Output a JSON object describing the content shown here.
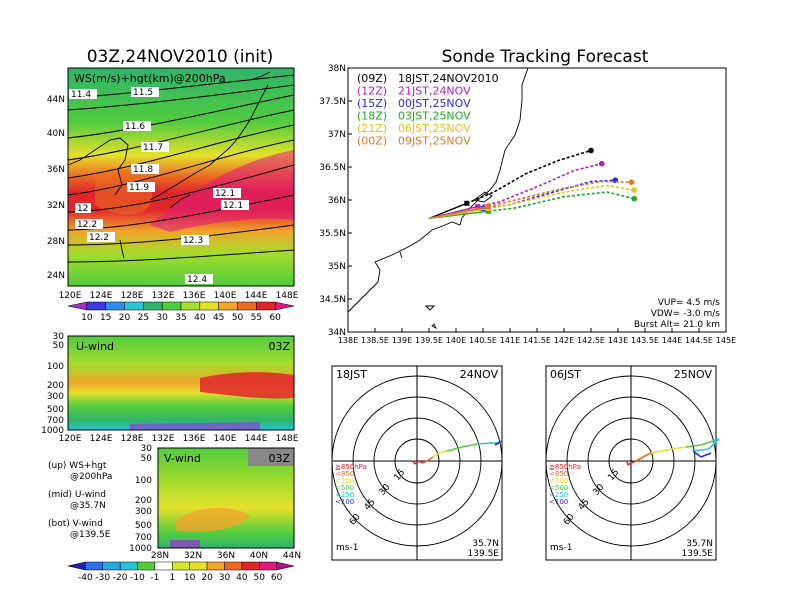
{
  "left_title": "03Z,24NOV2010 (init)",
  "right_title": "Sonde Tracking Forecast",
  "map_panel": {
    "label": "WS(m/s)+hgt(km)@200hPa",
    "lon_ticks": [
      "120E",
      "124E",
      "128E",
      "132E",
      "136E",
      "140E",
      "144E",
      "148E"
    ],
    "lat_ticks": [
      "44N",
      "40N",
      "36N",
      "32N",
      "28N",
      "24N"
    ],
    "contour_labels": [
      "11.4",
      "11.5",
      "11.6",
      "11.7",
      "11.8",
      "11.9",
      "12",
      "12.1",
      "12.2",
      "12.1",
      "12.2",
      "12.3",
      "12.4"
    ],
    "colorbar_ticks": [
      "10",
      "15",
      "20",
      "25",
      "30",
      "35",
      "40",
      "45",
      "50",
      "55",
      "60"
    ],
    "colors": [
      "#9b30d0",
      "#3a3adf",
      "#2f8fe8",
      "#29c3d6",
      "#2fb36a",
      "#52cc3e",
      "#a6dc2c",
      "#e6e02c",
      "#f0a52b",
      "#ea6a23",
      "#e0262c",
      "#e01880"
    ]
  },
  "u_panel": {
    "label": "U-wind",
    "time": "03Z",
    "p_ticks": [
      "30",
      "50",
      "100",
      "200",
      "300",
      "500",
      "700",
      "1000"
    ],
    "lon_ticks": [
      "120E",
      "124E",
      "128E",
      "132E",
      "136E",
      "140E",
      "144E",
      "148E"
    ]
  },
  "v_panel": {
    "label": "V-wind",
    "time": "03Z",
    "p_ticks": [
      "30",
      "50",
      "100",
      "200",
      "300",
      "500",
      "700",
      "1000"
    ],
    "lat_ticks": [
      "28N",
      "32N",
      "36N",
      "40N",
      "44N"
    ]
  },
  "legend_notes": [
    {
      "a": "(up) WS+hgt",
      "b": "@200hPa"
    },
    {
      "a": "(mid) U-wind",
      "b": "@35.7N"
    },
    {
      "a": "(bot) V-wind",
      "b": "@139.5E"
    }
  ],
  "bottom_colorbar": [
    "-40",
    "-30",
    "-20",
    "-10",
    "-1",
    "1",
    "10",
    "20",
    "30",
    "40",
    "50",
    "60"
  ],
  "track_map": {
    "lat_ticks": [
      "38N",
      "37.5N",
      "37N",
      "36.5N",
      "36N",
      "35.5N",
      "35N",
      "34.5N",
      "34N"
    ],
    "lon_ticks": [
      "138E",
      "138.5E",
      "139E",
      "139.5E",
      "140E",
      "140.5E",
      "141E",
      "141.5E",
      "142E",
      "142.5E",
      "143E",
      "143.5E",
      "144E",
      "144.5E",
      "145E"
    ],
    "legend": [
      {
        "z": "(09Z)",
        "t": "18JST,24NOV2010",
        "color": "#000000"
      },
      {
        "z": "(12Z)",
        "t": "21JST,24NOV",
        "color": "#b020c8"
      },
      {
        "z": "(15Z)",
        "t": "00JST,25NOV",
        "color": "#2a2ae0"
      },
      {
        "z": "(18Z)",
        "t": "03JST,25NOV",
        "color": "#1faa1f"
      },
      {
        "z": "(21Z)",
        "t": "06JST,25NOV",
        "color": "#e8c020"
      },
      {
        "z": "(00Z)",
        "t": "09JST,25NOV",
        "color": "#e07a20"
      }
    ],
    "params": [
      "VUP= 4.5 m/s",
      "VDW= -3.0 m/s",
      "Burst Alt= 21.0 km"
    ]
  },
  "hodo_left": {
    "time": "18JST",
    "date": "24NOV",
    "loc1": "35.7N",
    "loc2": "139.5E",
    "unit": "ms-1"
  },
  "hodo_right": {
    "time": "06JST",
    "date": "25NOV",
    "loc1": "35.7N",
    "loc2": "139.5E",
    "unit": "ms-1"
  },
  "hodo_rings": [
    "15",
    "30",
    "45",
    "60"
  ],
  "hodo_pressure_legend": [
    "≧850hPa",
    "<850",
    "<700",
    "<500",
    "<250",
    "<100"
  ],
  "chart_data": {
    "type": "line",
    "title": "Sonde Tracking Forecast",
    "xlabel": "",
    "ylabel": "",
    "xlim": [
      138,
      145
    ],
    "ylim": [
      34,
      38
    ],
    "series": [
      {
        "name": "(09Z) 18JST,24NOV2010",
        "color": "#000000",
        "x": [
          139.5,
          140.2,
          140.7,
          141.3,
          141.9,
          142.5
        ],
        "y": [
          35.72,
          35.95,
          36.12,
          36.4,
          36.6,
          36.75
        ]
      },
      {
        "name": "(12Z) 21JST,24NOV",
        "color": "#b020c8",
        "x": [
          139.5,
          140.4,
          140.8,
          141.5,
          142.2,
          142.7
        ],
        "y": [
          35.72,
          35.9,
          35.97,
          36.2,
          36.45,
          36.55
        ]
      },
      {
        "name": "(15Z) 00JST,25NOV",
        "color": "#2a2ae0",
        "x": [
          139.5,
          140.5,
          141.0,
          141.8,
          142.5,
          142.95
        ],
        "y": [
          35.72,
          35.87,
          35.93,
          36.12,
          36.28,
          36.3
        ]
      },
      {
        "name": "(18Z) 03JST,25NOV",
        "color": "#1faa1f",
        "x": [
          139.5,
          140.6,
          141.1,
          142.0,
          142.8,
          143.3
        ],
        "y": [
          35.72,
          35.83,
          35.88,
          36.05,
          36.12,
          36.02
        ]
      },
      {
        "name": "(21Z) 06JST,25NOV",
        "color": "#e8c020",
        "x": [
          139.5,
          140.6,
          141.1,
          142.0,
          142.8,
          143.3
        ],
        "y": [
          35.72,
          35.87,
          35.95,
          36.12,
          36.22,
          36.15
        ]
      },
      {
        "name": "(00Z) 09JST,25NOV",
        "color": "#e07a20",
        "x": [
          139.5,
          140.6,
          141.1,
          142.0,
          142.7,
          143.25
        ],
        "y": [
          35.72,
          35.9,
          36.0,
          36.18,
          36.28,
          36.27
        ]
      }
    ]
  }
}
